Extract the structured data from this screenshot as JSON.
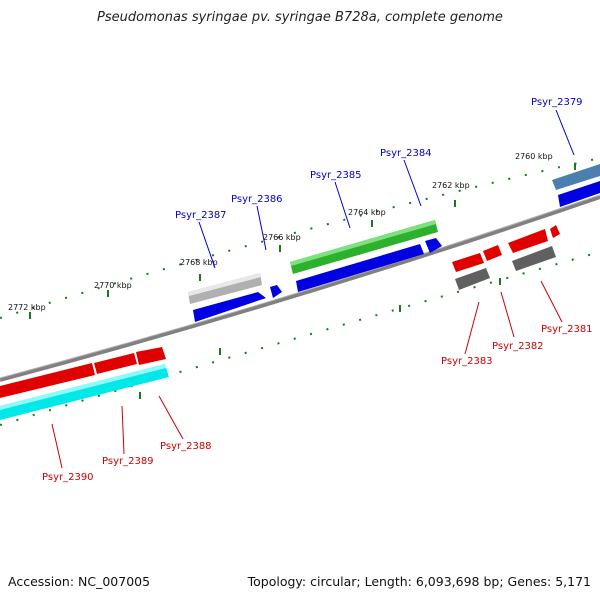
{
  "title": "Pseudomonas syringae pv. syringae B728a, complete genome",
  "footer": {
    "accession": "Accession: NC_007005",
    "summary": "Topology: circular; Length: 6,093,698 bp; Genes: 5,171"
  },
  "colors": {
    "backbone": "#808080",
    "tick": "#1a7a1a",
    "forward_label": "#0000cc",
    "reverse_label": "#cc0000"
  },
  "ticks": [
    {
      "label": "2760 kbp"
    },
    {
      "label": "2762 kbp"
    },
    {
      "label": "2764 kbp"
    },
    {
      "label": "2766 kbp"
    },
    {
      "label": "2768 kbp"
    },
    {
      "label": "2770 kbp"
    },
    {
      "label": "2772 kbp"
    }
  ],
  "genes": [
    {
      "name": "Psyr_2379",
      "strand": "forward"
    },
    {
      "name": "Psyr_2381",
      "strand": "reverse"
    },
    {
      "name": "Psyr_2382",
      "strand": "reverse"
    },
    {
      "name": "Psyr_2383",
      "strand": "reverse"
    },
    {
      "name": "Psyr_2384",
      "strand": "forward"
    },
    {
      "name": "Psyr_2385",
      "strand": "forward"
    },
    {
      "name": "Psyr_2386",
      "strand": "forward"
    },
    {
      "name": "Psyr_2387",
      "strand": "forward"
    },
    {
      "name": "Psyr_2388",
      "strand": "reverse"
    },
    {
      "name": "Psyr_2389",
      "strand": "reverse"
    },
    {
      "name": "Psyr_2390",
      "strand": "reverse"
    }
  ]
}
